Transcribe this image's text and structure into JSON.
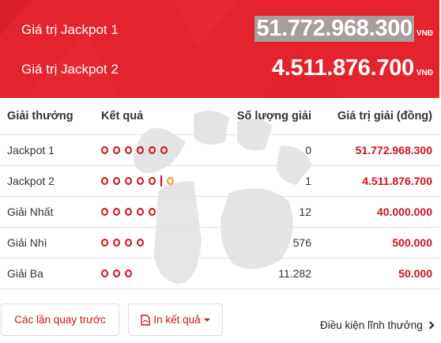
{
  "jackpots": [
    {
      "label": "Giá trị Jackpot 1",
      "value": "51.772.968.300",
      "unit": "VNĐ"
    },
    {
      "label": "Giá trị Jackpot 2",
      "value": "4.511.876.700",
      "unit": "VNĐ"
    }
  ],
  "table": {
    "headers": {
      "prize": "Giải thưởng",
      "result": "Kết quả",
      "count": "Số lượng giải",
      "value": "Giá trị giải (đồng)"
    },
    "rows": [
      {
        "prize": "Jackpot 1",
        "balls": 6,
        "special": false,
        "count": "0",
        "value": "51.772.968.300"
      },
      {
        "prize": "Jackpot 2",
        "balls": 5,
        "special": true,
        "count": "1",
        "value": "4.511.876.700"
      },
      {
        "prize": "Giải Nhất",
        "balls": 5,
        "special": false,
        "count": "12",
        "value": "40.000.000"
      },
      {
        "prize": "Giải Nhì",
        "balls": 4,
        "special": false,
        "count": "576",
        "value": "500.000"
      },
      {
        "prize": "Giải Ba",
        "balls": 3,
        "special": false,
        "count": "11.282",
        "value": "50.000"
      }
    ]
  },
  "buttons": {
    "previous_draws": "Các lần quay trước",
    "print_results": "In kết quả"
  },
  "conditions_link": "Điều kiện lĩnh thưởng",
  "colors": {
    "banner": "#e4232c",
    "accent": "#d0121b",
    "special_ball": "#f39c12"
  }
}
